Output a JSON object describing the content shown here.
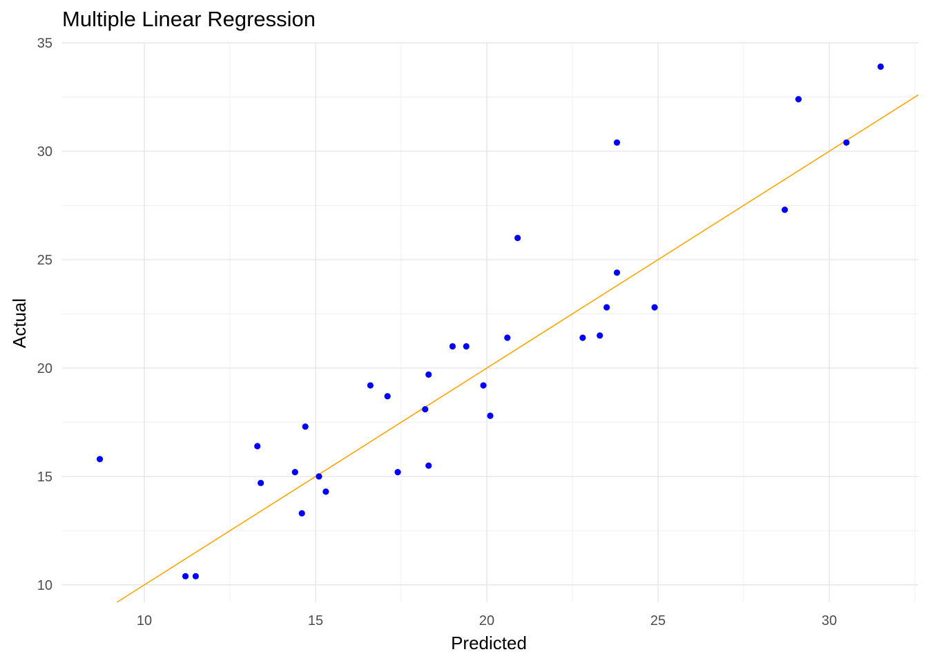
{
  "chart_data": {
    "type": "scatter",
    "title": "Multiple Linear Regression",
    "xlabel": "Predicted",
    "ylabel": "Actual",
    "xlim": [
      7.6,
      32.6
    ],
    "ylim": [
      9.2,
      35.0
    ],
    "x_ticks": [
      10,
      15,
      20,
      25,
      30
    ],
    "y_ticks": [
      10,
      15,
      20,
      25,
      30,
      35
    ],
    "grid": true,
    "point_color": "#0000FF",
    "line_color": "#FFA500",
    "points": [
      {
        "x": 8.7,
        "y": 15.8
      },
      {
        "x": 11.2,
        "y": 10.4
      },
      {
        "x": 11.5,
        "y": 10.4
      },
      {
        "x": 13.3,
        "y": 16.4
      },
      {
        "x": 13.4,
        "y": 14.7
      },
      {
        "x": 14.4,
        "y": 15.2
      },
      {
        "x": 14.6,
        "y": 13.3
      },
      {
        "x": 14.7,
        "y": 17.3
      },
      {
        "x": 15.1,
        "y": 15.0
      },
      {
        "x": 15.3,
        "y": 14.3
      },
      {
        "x": 16.6,
        "y": 19.2
      },
      {
        "x": 17.1,
        "y": 18.7
      },
      {
        "x": 17.4,
        "y": 15.2
      },
      {
        "x": 18.2,
        "y": 18.1
      },
      {
        "x": 18.3,
        "y": 19.7
      },
      {
        "x": 18.3,
        "y": 15.5
      },
      {
        "x": 19.0,
        "y": 21.0
      },
      {
        "x": 19.4,
        "y": 21.0
      },
      {
        "x": 19.9,
        "y": 19.2
      },
      {
        "x": 20.1,
        "y": 17.8
      },
      {
        "x": 20.6,
        "y": 21.4
      },
      {
        "x": 20.9,
        "y": 26.0
      },
      {
        "x": 22.8,
        "y": 21.4
      },
      {
        "x": 23.3,
        "y": 21.5
      },
      {
        "x": 23.5,
        "y": 22.8
      },
      {
        "x": 23.8,
        "y": 30.4
      },
      {
        "x": 23.8,
        "y": 24.4
      },
      {
        "x": 24.9,
        "y": 22.8
      },
      {
        "x": 28.7,
        "y": 27.3
      },
      {
        "x": 29.1,
        "y": 32.4
      },
      {
        "x": 30.5,
        "y": 30.4
      },
      {
        "x": 31.5,
        "y": 33.9
      }
    ],
    "reference_line": {
      "slope": 1,
      "intercept": 0
    }
  }
}
